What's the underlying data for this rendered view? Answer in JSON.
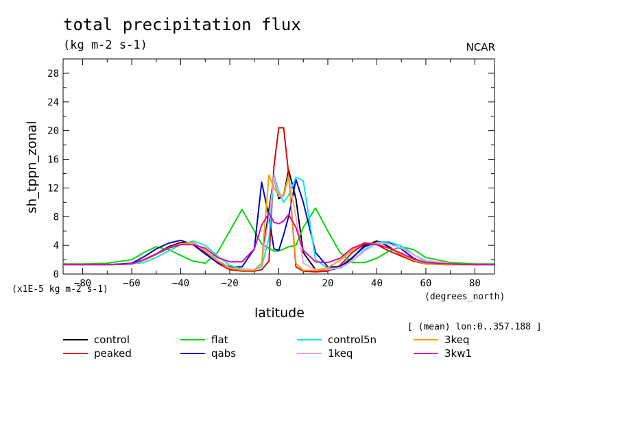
{
  "chart_data": {
    "type": "line",
    "title": "total precipitation flux",
    "units_line": "(kg m-2 s-1)",
    "credit": "NCAR",
    "ylabel": "sh_tppn_zonal",
    "xlabel": "latitude",
    "x_units": "(degrees_north)",
    "y_scale_note": "(x1E-5 kg m-2 s-1)",
    "meta_note": "[ (mean) lon:0..357.188 ]",
    "xlim": [
      -88,
      88
    ],
    "ylim": [
      0,
      30
    ],
    "x_ticks": [
      -80,
      -60,
      -40,
      -20,
      0,
      20,
      40,
      60,
      80
    ],
    "y_ticks": [
      0,
      4,
      8,
      12,
      16,
      20,
      24,
      28
    ],
    "legend_placement": "bottom",
    "x": [
      -88,
      -80,
      -70,
      -60,
      -55,
      -50,
      -45,
      -40,
      -35,
      -30,
      -25,
      -20,
      -15,
      -10,
      -7,
      -4,
      -2,
      0,
      2,
      4,
      7,
      10,
      15,
      20,
      25,
      30,
      35,
      40,
      45,
      50,
      55,
      60,
      70,
      80,
      88
    ],
    "series": [
      {
        "name": "control",
        "color": "#000000",
        "values": [
          1.3,
          1.3,
          1.3,
          1.4,
          2.0,
          2.8,
          3.8,
          4.4,
          4.4,
          3.2,
          1.8,
          0.9,
          0.5,
          0.5,
          1.5,
          9.0,
          13.5,
          10.5,
          11.0,
          14.5,
          10.5,
          3.0,
          0.6,
          0.5,
          0.9,
          2.2,
          4.0,
          4.6,
          3.8,
          2.6,
          1.8,
          1.4,
          1.3,
          1.3,
          1.3
        ]
      },
      {
        "name": "peaked",
        "color": "#e00000",
        "values": [
          1.3,
          1.3,
          1.3,
          1.4,
          2.0,
          2.8,
          3.7,
          4.3,
          4.3,
          3.0,
          1.5,
          0.6,
          0.4,
          0.4,
          0.6,
          1.8,
          15.0,
          20.4,
          20.4,
          14.0,
          1.0,
          0.4,
          0.3,
          0.4,
          1.2,
          3.0,
          4.2,
          4.1,
          3.2,
          2.5,
          1.8,
          1.5,
          1.3,
          1.3,
          1.3
        ]
      },
      {
        "name": "flat",
        "color": "#00d800",
        "values": [
          1.4,
          1.4,
          1.5,
          2.0,
          3.0,
          3.8,
          3.4,
          2.6,
          1.8,
          1.5,
          3.0,
          6.0,
          9.0,
          6.0,
          4.2,
          3.6,
          3.2,
          3.2,
          3.5,
          3.8,
          4.0,
          6.5,
          9.2,
          6.0,
          3.0,
          1.6,
          1.6,
          2.2,
          3.2,
          3.8,
          3.4,
          2.3,
          1.6,
          1.4,
          1.4
        ]
      },
      {
        "name": "qabs",
        "color": "#0000cc",
        "values": [
          1.3,
          1.3,
          1.3,
          1.5,
          2.4,
          3.5,
          4.3,
          4.7,
          4.1,
          2.8,
          1.6,
          1.0,
          1.0,
          3.5,
          12.8,
          8.0,
          3.5,
          3.3,
          5.5,
          8.0,
          13.2,
          10.0,
          3.0,
          1.0,
          1.0,
          2.3,
          3.8,
          4.5,
          4.4,
          3.5,
          2.2,
          1.5,
          1.3,
          1.3,
          1.3
        ]
      },
      {
        "name": "control5n",
        "color": "#00e8e8",
        "values": [
          1.3,
          1.3,
          1.3,
          1.4,
          1.6,
          2.3,
          3.2,
          4.1,
          4.6,
          4.0,
          2.5,
          1.2,
          0.7,
          0.6,
          1.0,
          5.0,
          13.8,
          11.5,
          10.0,
          11.0,
          13.5,
          13.0,
          2.0,
          0.8,
          0.8,
          1.8,
          3.4,
          4.4,
          4.5,
          3.9,
          2.7,
          1.7,
          1.3,
          1.3,
          1.3
        ]
      },
      {
        "name": "1keq",
        "color": "#f0a0e0",
        "values": [
          1.3,
          1.3,
          1.3,
          1.4,
          1.9,
          2.7,
          3.6,
          4.2,
          4.3,
          3.2,
          1.8,
          0.9,
          0.6,
          0.6,
          1.5,
          8.0,
          13.5,
          10.8,
          10.8,
          13.5,
          8.0,
          1.5,
          0.6,
          0.6,
          0.9,
          1.8,
          3.2,
          4.3,
          4.2,
          3.6,
          2.7,
          1.9,
          1.4,
          1.3,
          1.3
        ]
      },
      {
        "name": "3keq",
        "color": "#f0a000",
        "values": [
          1.3,
          1.3,
          1.3,
          1.4,
          1.9,
          2.7,
          3.6,
          4.2,
          4.4,
          3.3,
          1.9,
          0.9,
          0.5,
          0.5,
          1.5,
          13.8,
          12.0,
          11.0,
          11.0,
          13.8,
          1.5,
          0.5,
          0.5,
          0.9,
          1.9,
          3.3,
          4.4,
          4.2,
          3.6,
          2.7,
          1.9,
          1.4,
          1.3,
          1.3,
          1.3
        ]
      },
      {
        "name": "3kw1",
        "color": "#e000b0",
        "values": [
          1.3,
          1.3,
          1.3,
          1.4,
          2.0,
          2.8,
          3.6,
          4.1,
          4.1,
          3.6,
          2.3,
          1.7,
          1.7,
          3.5,
          6.8,
          8.5,
          7.2,
          7.0,
          7.4,
          8.3,
          6.5,
          3.3,
          1.7,
          1.6,
          2.2,
          3.6,
          4.3,
          4.1,
          3.6,
          2.9,
          2.1,
          1.6,
          1.4,
          1.3,
          1.3
        ]
      }
    ]
  }
}
